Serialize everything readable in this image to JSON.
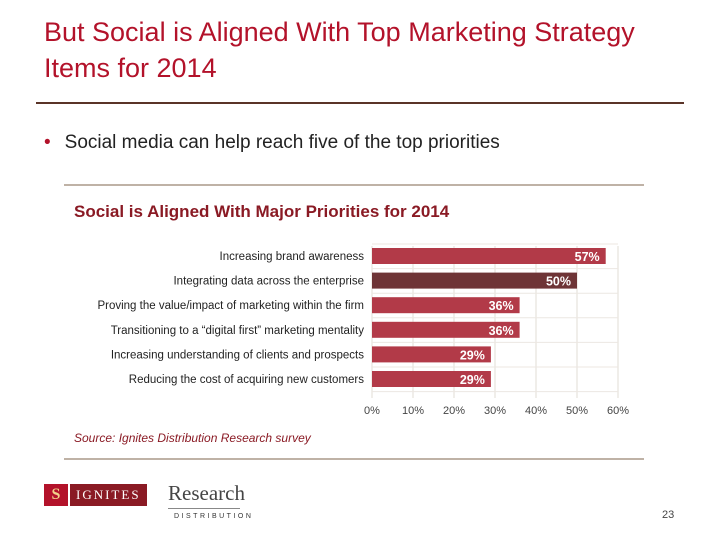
{
  "slide": {
    "title": "But Social is Aligned With Top Marketing Strategy Items for 2014",
    "bullet_marker": "•",
    "bullet": "Social media can help reach five of the top priorities",
    "page_number": "23"
  },
  "logo": {
    "mark": "S",
    "ignites": "IGNITES",
    "research": "Research",
    "distribution": "DISTRIBUTION"
  },
  "colors": {
    "title": "#b3122a",
    "bar": "#b23a48",
    "bar_highlight": "#6e3436",
    "chart_title": "#8a1a24"
  },
  "chart_data": {
    "type": "bar",
    "orientation": "horizontal",
    "title": "Social is Aligned With Major Priorities for 2014",
    "source": "Source: Ignites Distribution Research survey",
    "categories": [
      "Increasing brand awareness",
      "Integrating data across the enterprise",
      "Proving the value/impact of marketing within the firm",
      "Transitioning to a “digital first” marketing mentality",
      "Increasing understanding of clients and prospects",
      "Reducing the cost of acquiring new customers"
    ],
    "values": [
      57,
      50,
      36,
      36,
      29,
      29
    ],
    "value_labels": [
      "57%",
      "50%",
      "36%",
      "36%",
      "29%",
      "29%"
    ],
    "highlight_index": 1,
    "xlim": [
      0,
      60
    ],
    "x_ticks": [
      0,
      10,
      20,
      30,
      40,
      50,
      60
    ],
    "x_tick_labels": [
      "0%",
      "10%",
      "20%",
      "30%",
      "40%",
      "50%",
      "60%"
    ],
    "grid": true,
    "xlabel": "",
    "ylabel": ""
  }
}
